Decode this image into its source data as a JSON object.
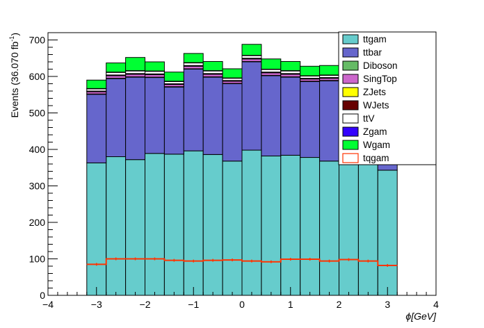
{
  "chart_data": {
    "type": "bar",
    "stacked": true,
    "xlabel": "ϕ[GeV]",
    "ylabel": "Events (36.070 fb",
    "ylabel_sup": "-1",
    "ylabel_close": ")",
    "xlim": [
      -4,
      4
    ],
    "ylim": [
      0,
      720
    ],
    "xticks": [
      -4,
      -3,
      -2,
      -1,
      0,
      1,
      2,
      3,
      4
    ],
    "yticks": [
      0,
      100,
      200,
      300,
      400,
      500,
      600,
      700
    ],
    "xtick_labels": [
      "−4",
      "−3",
      "−2",
      "−1",
      "0",
      "1",
      "2",
      "3",
      "4"
    ],
    "ytick_labels": [
      "0",
      "100",
      "200",
      "300",
      "400",
      "500",
      "600",
      "700"
    ],
    "bin_edges": [
      -3.2,
      -2.8,
      -2.4,
      -2.0,
      -1.6,
      -1.2,
      -0.8,
      -0.4,
      0.0,
      0.4,
      0.8,
      1.2,
      1.6,
      2.0,
      2.4,
      2.8,
      3.2
    ],
    "legend_position": "top-right",
    "series": [
      {
        "name": "ttgam",
        "color": "#66cccc",
        "values": [
          363,
          380,
          372,
          389,
          387,
          396,
          386,
          368,
          398,
          382,
          384,
          378,
          368,
          372,
          366,
          343
        ]
      },
      {
        "name": "ttbar",
        "color": "#6666cc",
        "values": [
          188,
          214,
          226,
          208,
          184,
          224,
          212,
          212,
          242,
          220,
          214,
          208,
          220,
          226,
          222,
          208
        ]
      },
      {
        "name": "Diboson",
        "color": "#66bb66",
        "values": [
          1,
          1,
          1,
          1,
          1,
          1,
          1,
          1,
          1,
          1,
          1,
          1,
          1,
          1,
          1,
          1
        ]
      },
      {
        "name": "SingTop",
        "color": "#cc66cc",
        "values": [
          6,
          7,
          7,
          7,
          6,
          7,
          7,
          6,
          7,
          7,
          7,
          6,
          6,
          7,
          7,
          6
        ]
      },
      {
        "name": "ZJets",
        "color": "#ffff00",
        "values": [
          1,
          1,
          1,
          1,
          1,
          1,
          1,
          1,
          1,
          1,
          1,
          1,
          1,
          1,
          1,
          1
        ]
      },
      {
        "name": "WJets",
        "color": "#660000",
        "values": [
          1,
          1,
          1,
          1,
          1,
          1,
          1,
          1,
          1,
          1,
          1,
          1,
          1,
          1,
          1,
          1
        ]
      },
      {
        "name": "ttV",
        "color": "#ffffff",
        "values": [
          6,
          7,
          7,
          7,
          6,
          7,
          7,
          6,
          7,
          7,
          7,
          6,
          6,
          7,
          7,
          6
        ]
      },
      {
        "name": "Zgam",
        "color": "#3300ff",
        "values": [
          1,
          1,
          1,
          1,
          1,
          1,
          1,
          1,
          1,
          1,
          1,
          1,
          1,
          1,
          1,
          1
        ]
      },
      {
        "name": "Wgam",
        "color": "#00ff33",
        "values": [
          23,
          25,
          36,
          25,
          25,
          25,
          25,
          25,
          30,
          28,
          25,
          26,
          26,
          22,
          25,
          20
        ]
      }
    ],
    "signal": {
      "name": "tqgam",
      "color": "#ff3300",
      "values": [
        85,
        100,
        100,
        100,
        96,
        94,
        96,
        97,
        94,
        92,
        99,
        99,
        94,
        98,
        94,
        82
      ]
    }
  }
}
